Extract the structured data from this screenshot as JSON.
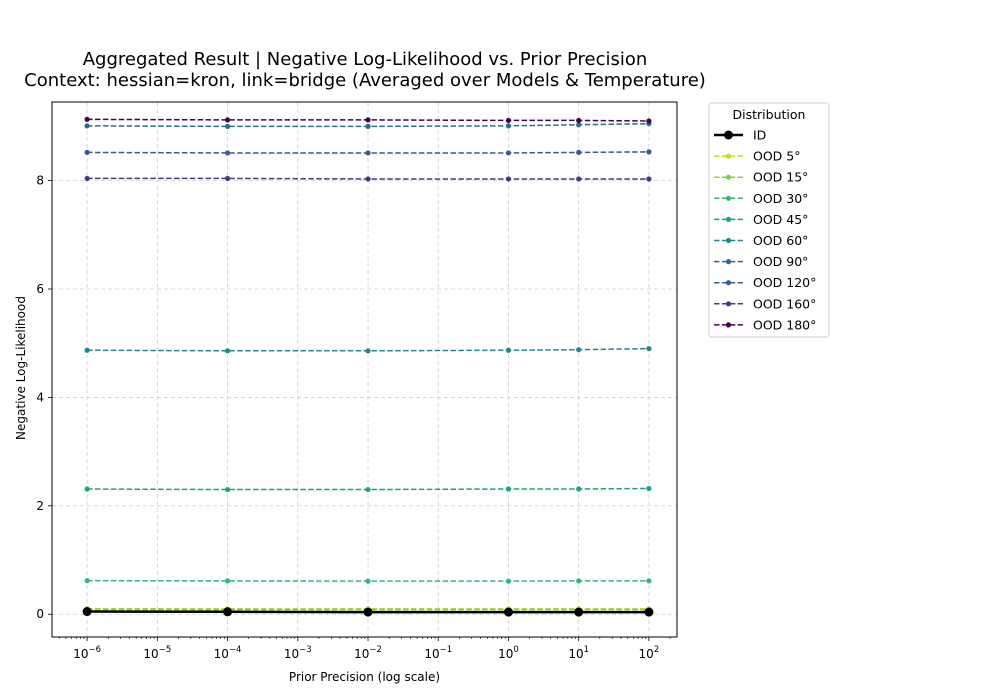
{
  "chart_data": {
    "type": "line",
    "title_lines": [
      "Aggregated Result | Negative Log-Likelihood vs. Prior Precision",
      "Context: hessian=kron, link=bridge (Averaged over Models & Temperature)"
    ],
    "xlabel": "Prior Precision (log scale)",
    "ylabel": "Negative Log-Likelihood",
    "x_scale": "log",
    "x": [
      1e-06,
      0.0001,
      0.01,
      1,
      10,
      100
    ],
    "x_ticks": [
      {
        "base": "10",
        "exp": "−6"
      },
      {
        "base": "10",
        "exp": "−5"
      },
      {
        "base": "10",
        "exp": "−4"
      },
      {
        "base": "10",
        "exp": "−3"
      },
      {
        "base": "10",
        "exp": "−2"
      },
      {
        "base": "10",
        "exp": "−1"
      },
      {
        "base": "10",
        "exp": "0"
      },
      {
        "base": "10",
        "exp": "1"
      },
      {
        "base": "10",
        "exp": "2"
      }
    ],
    "xlim_log10": [
      -6.5,
      2.4
    ],
    "y_ticks": [
      "0",
      "2",
      "4",
      "6",
      "8"
    ],
    "ylim": [
      -0.42,
      9.45
    ],
    "grid": true,
    "legend_title": "Distribution",
    "legend_position": "outside-right",
    "series": [
      {
        "name": "ID",
        "color": "#000000",
        "style": "solid",
        "values": [
          0.05,
          0.045,
          0.04,
          0.04,
          0.04,
          0.04
        ]
      },
      {
        "name": "OOD 5°",
        "color": "#bddf26",
        "style": "dashed",
        "values": [
          0.1,
          0.1,
          0.1,
          0.1,
          0.1,
          0.1
        ]
      },
      {
        "name": "OOD 15°",
        "color": "#7ad151",
        "style": "dashed",
        "values": [
          0.09,
          0.085,
          0.085,
          0.085,
          0.085,
          0.085
        ]
      },
      {
        "name": "OOD 30°",
        "color": "#35b779",
        "style": "dashed",
        "values": [
          0.62,
          0.615,
          0.61,
          0.61,
          0.615,
          0.615
        ]
      },
      {
        "name": "OOD 45°",
        "color": "#1fa088",
        "style": "dashed",
        "values": [
          2.31,
          2.3,
          2.3,
          2.31,
          2.31,
          2.32
        ]
      },
      {
        "name": "OOD 60°",
        "color": "#22888e",
        "style": "dashed",
        "values": [
          4.87,
          4.86,
          4.86,
          4.87,
          4.88,
          4.9
        ]
      },
      {
        "name": "OOD 90°",
        "color": "#2a6e8e",
        "style": "dashed",
        "values": [
          9.01,
          9.0,
          9.0,
          9.01,
          9.03,
          9.05
        ]
      },
      {
        "name": "OOD 120°",
        "color": "#355e8d",
        "style": "dashed",
        "values": [
          8.52,
          8.51,
          8.51,
          8.51,
          8.52,
          8.53
        ]
      },
      {
        "name": "OOD 160°",
        "color": "#443983",
        "style": "dashed",
        "values": [
          8.04,
          8.04,
          8.03,
          8.03,
          8.03,
          8.03
        ]
      },
      {
        "name": "OOD 180°",
        "color": "#440154",
        "style": "dashed",
        "values": [
          9.13,
          9.12,
          9.12,
          9.11,
          9.11,
          9.1
        ]
      }
    ]
  }
}
